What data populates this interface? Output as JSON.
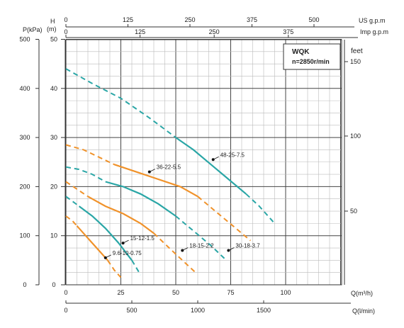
{
  "chart_data": {
    "type": "line",
    "title_box": {
      "line1": "WQK",
      "line2": "n=2850r/min"
    },
    "axes": {
      "p_kpa": {
        "label": "P(kPa)",
        "ticks": [
          "500",
          "400",
          "300",
          "200",
          "100",
          "0"
        ],
        "range": [
          0,
          500
        ]
      },
      "h_m": {
        "label_top": "H",
        "label_unit": "(m)",
        "ticks": [
          "50",
          "40",
          "30",
          "20",
          "10",
          "0"
        ],
        "range": [
          0,
          50
        ]
      },
      "feet": {
        "label": "feet",
        "ticks": [
          "150",
          "100",
          "50"
        ]
      },
      "us_gpm": {
        "label": "US g.p.m",
        "ticks": [
          "0",
          "125",
          "250",
          "375",
          "500"
        ]
      },
      "imp_gpm": {
        "label": "Imp g.p.m",
        "ticks": [
          "0",
          "125",
          "250",
          "375"
        ]
      },
      "q_m3h": {
        "label": "Q(m³/h)",
        "ticks": [
          "0",
          "25",
          "50",
          "75",
          "100"
        ],
        "range": [
          0,
          100
        ]
      },
      "q_lmin": {
        "label": "Q(l/min)",
        "ticks": [
          "0",
          "500",
          "1000",
          "1500"
        ]
      }
    },
    "grid": true,
    "series": [
      {
        "name": "48-25-7.5",
        "color": "#2aa6a6",
        "solid": [
          [
            50,
            30
          ],
          [
            58,
            27.5
          ],
          [
            66,
            24.5
          ],
          [
            74,
            21.5
          ],
          [
            82,
            18.5
          ]
        ],
        "dashed_before": [
          [
            0,
            44
          ],
          [
            12,
            41
          ],
          [
            25,
            38
          ],
          [
            38,
            34
          ],
          [
            50,
            30
          ]
        ],
        "dashed_after": [
          [
            82,
            18.5
          ],
          [
            88,
            16
          ],
          [
            95,
            12.5
          ]
        ]
      },
      {
        "name": "36-22-5.5",
        "color": "#f0922a",
        "solid": [
          [
            22,
            24.5
          ],
          [
            32,
            23
          ],
          [
            42,
            21.5
          ],
          [
            52,
            20
          ],
          [
            60,
            18
          ]
        ],
        "dashed_before": [
          [
            0,
            28.5
          ],
          [
            8,
            27.5
          ],
          [
            15,
            26
          ],
          [
            22,
            24.5
          ]
        ],
        "dashed_after": [
          [
            60,
            18
          ],
          [
            68,
            15
          ],
          [
            76,
            12
          ],
          [
            84,
            9
          ]
        ]
      },
      {
        "name": "30-18-3.7",
        "color": "#2aa6a6",
        "solid": [
          [
            18,
            21
          ],
          [
            26,
            20
          ],
          [
            34,
            18.5
          ],
          [
            42,
            16.5
          ],
          [
            50,
            14
          ]
        ],
        "dashed_before": [
          [
            0,
            24
          ],
          [
            6,
            23.5
          ],
          [
            12,
            22.5
          ],
          [
            18,
            21
          ]
        ],
        "dashed_after": [
          [
            50,
            14
          ],
          [
            58,
            11
          ],
          [
            66,
            8
          ],
          [
            73,
            5
          ]
        ]
      },
      {
        "name": "18-15-2.2",
        "color": "#f0922a",
        "solid": [
          [
            10,
            18
          ],
          [
            18,
            16
          ],
          [
            26,
            14.5
          ],
          [
            34,
            12.5
          ],
          [
            40,
            10.5
          ]
        ],
        "dashed_before": [
          [
            0,
            21
          ],
          [
            5,
            19.5
          ],
          [
            10,
            18
          ]
        ],
        "dashed_after": [
          [
            40,
            10.5
          ],
          [
            47,
            7.5
          ],
          [
            53,
            5
          ],
          [
            59,
            2.5
          ]
        ]
      },
      {
        "name": "15-12-1.5",
        "color": "#2aa6a6",
        "solid": [
          [
            6,
            16
          ],
          [
            12,
            14
          ],
          [
            18,
            11.5
          ],
          [
            24,
            8.5
          ],
          [
            30,
            5
          ]
        ],
        "dashed_before": [
          [
            0,
            18
          ],
          [
            3,
            17
          ],
          [
            6,
            16
          ]
        ],
        "dashed_after": [
          [
            30,
            5
          ],
          [
            34,
            2
          ]
        ]
      },
      {
        "name": "9.6-10-0.75",
        "color": "#f0922a",
        "solid": [
          [
            5,
            12
          ],
          [
            10,
            9.5
          ],
          [
            15,
            7
          ],
          [
            19,
            5
          ]
        ],
        "dashed_before": [
          [
            0,
            14
          ],
          [
            3,
            13
          ],
          [
            5,
            12
          ]
        ],
        "dashed_after": [
          [
            19,
            5
          ],
          [
            22,
            3
          ],
          [
            25,
            1.5
          ]
        ]
      }
    ],
    "annotations": [
      {
        "text": "48-25-7.5",
        "at": [
          67,
          25.5
        ]
      },
      {
        "text": "36-22-5.5",
        "at": [
          38,
          23
        ]
      },
      {
        "text": "30-18-3.7",
        "at": [
          74,
          7
        ]
      },
      {
        "text": "18-15-2.2",
        "at": [
          53,
          7
        ]
      },
      {
        "text": "15-12-1.5",
        "at": [
          26,
          8.5
        ]
      },
      {
        "text": "9.6-10-0.75",
        "at": [
          18,
          5.5
        ]
      }
    ]
  }
}
